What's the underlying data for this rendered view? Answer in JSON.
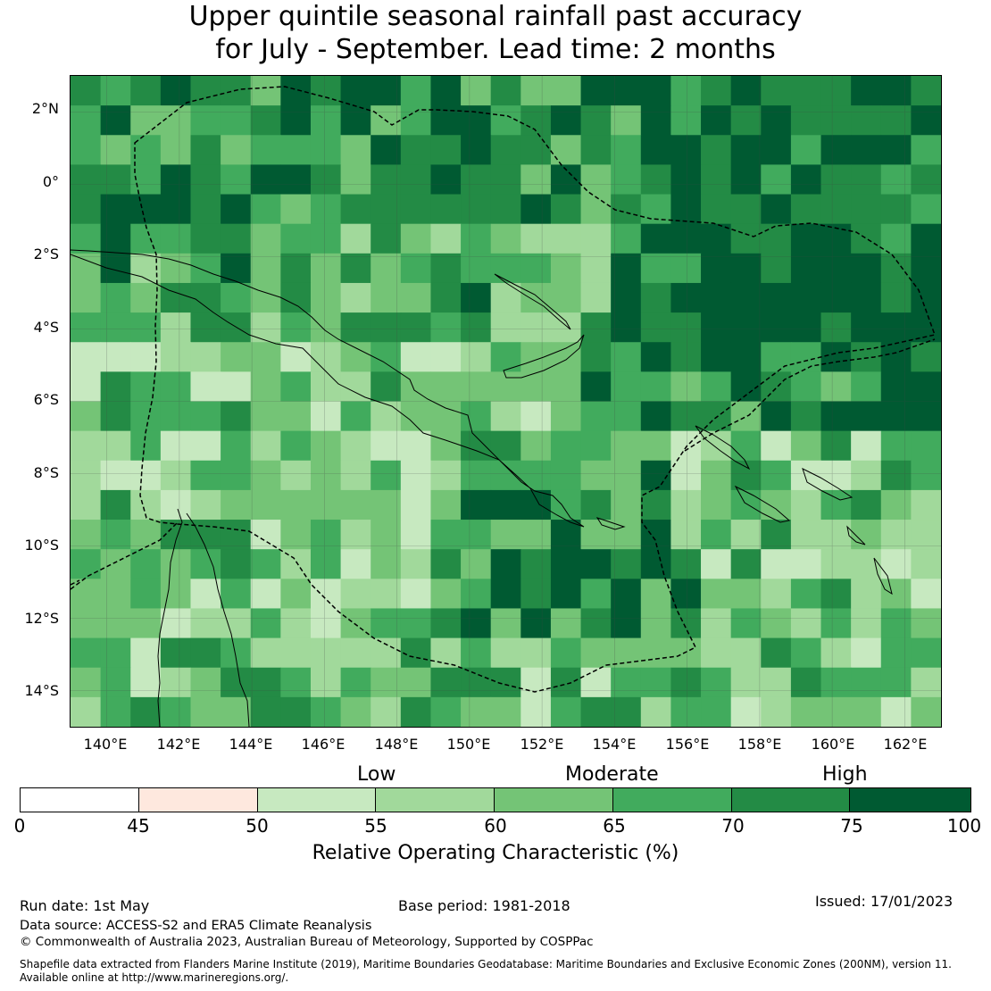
{
  "title": {
    "line1": "Upper quintile seasonal rainfall past accuracy",
    "line2": "for July - September. Lead time: 2 months"
  },
  "map": {
    "lat_labels": [
      "2°N",
      "0°",
      "2°S",
      "4°S",
      "6°S",
      "8°S",
      "10°S",
      "12°S",
      "14°S"
    ],
    "lon_labels": [
      "140°E",
      "142°E",
      "144°E",
      "146°E",
      "148°E",
      "150°E",
      "152°E",
      "154°E",
      "156°E",
      "158°E",
      "160°E",
      "162°E"
    ],
    "lat_range": [
      -15,
      3
    ],
    "lon_range": [
      139,
      163
    ],
    "grid_lines": true,
    "coastline_color": "#000000",
    "eez_boundary_style": "dashed"
  },
  "colorbar": {
    "categories": [
      "Low",
      "Moderate",
      "High"
    ],
    "ticks": [
      "0",
      "45",
      "50",
      "55",
      "60",
      "65",
      "70",
      "75",
      "100"
    ],
    "bins": [
      {
        "range": [
          0,
          45
        ],
        "color": "#ffffff"
      },
      {
        "range": [
          45,
          50
        ],
        "color": "#fee8de"
      },
      {
        "range": [
          50,
          55
        ],
        "color": "#c7e9c0"
      },
      {
        "range": [
          55,
          60
        ],
        "color": "#a1d99b"
      },
      {
        "range": [
          60,
          65
        ],
        "color": "#74c476"
      },
      {
        "range": [
          65,
          70
        ],
        "color": "#41ab5d"
      },
      {
        "range": [
          70,
          75
        ],
        "color": "#238b45"
      },
      {
        "range": [
          75,
          100
        ],
        "color": "#005a32"
      }
    ],
    "label": "Relative Operating Characteristic (%)"
  },
  "footer": {
    "run_date": "Run date: 1st May",
    "base_period": "Base period: 1981-2018",
    "issued": "Issued: 17/01/2023",
    "data_source": "Data source: ACCESS-S2 and ERA5 Climate Reanalysis",
    "copyright": "© Commonwealth of Australia 2023, Australian Bureau of Meteorology, Supported by COSPPac",
    "shapefile_1": "Shapefile data extracted from Flanders Marine Institute (2019), Maritime Boundaries Geodatabase: Maritime Boundaries and Exclusive Economic Zones (200NM), version 11.",
    "shapefile_2": "Available online at http://www.marineregions.org/."
  }
}
